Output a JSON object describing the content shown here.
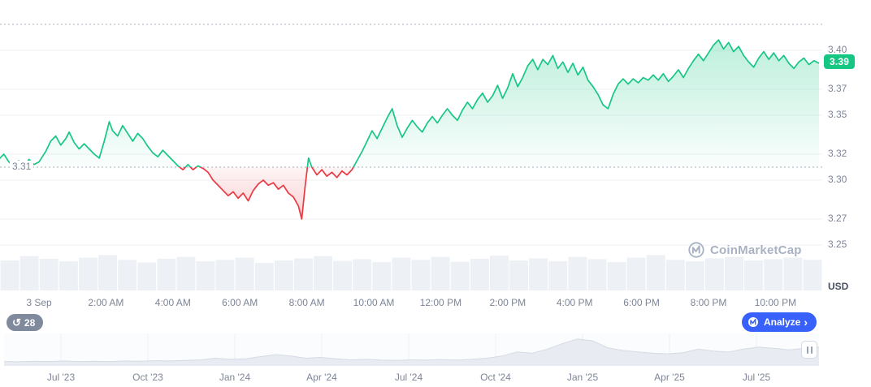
{
  "colors": {
    "green": "#16c784",
    "red": "#ea3943",
    "blue": "#3861fb",
    "gray": "#808a9d"
  },
  "watermark": {
    "text": "CoinMarketCap"
  },
  "controls": {
    "history_badge": {
      "label": "28",
      "icon": "history-clock"
    },
    "analyze_button": {
      "label": "Analyze",
      "icon": "coinmarketcap-logo",
      "chevron": "›"
    }
  },
  "chart_data": {
    "type": "area",
    "unit": "USD",
    "baseline": 3.31,
    "baseline_label": "3.31",
    "current_price": "3.39",
    "ylim": [
      3.25,
      3.42
    ],
    "y_ticks": [
      {
        "value": 3.4,
        "label": "3.40"
      },
      {
        "value": 3.37,
        "label": "3.37"
      },
      {
        "value": 3.35,
        "label": "3.35"
      },
      {
        "value": 3.32,
        "label": "3.32"
      },
      {
        "value": 3.3,
        "label": "3.30"
      },
      {
        "value": 3.27,
        "label": "3.27"
      },
      {
        "value": 3.25,
        "label": "3.25"
      }
    ],
    "x_ticks": [
      {
        "hour": 0,
        "label": "3 Sep"
      },
      {
        "hour": 2,
        "label": "2:00 AM"
      },
      {
        "hour": 4,
        "label": "4:00 AM"
      },
      {
        "hour": 6,
        "label": "6:00 AM"
      },
      {
        "hour": 8,
        "label": "8:00 AM"
      },
      {
        "hour": 10,
        "label": "10:00 AM"
      },
      {
        "hour": 12,
        "label": "12:00 PM"
      },
      {
        "hour": 14,
        "label": "2:00 PM"
      },
      {
        "hour": 16,
        "label": "4:00 PM"
      },
      {
        "hour": 18,
        "label": "6:00 PM"
      },
      {
        "hour": 20,
        "label": "8:00 PM"
      },
      {
        "hour": 22,
        "label": "10:00 PM"
      }
    ],
    "series_name": "price-usd",
    "series": [
      [
        -1.2,
        3.316
      ],
      [
        -1.05,
        3.32
      ],
      [
        -0.9,
        3.314
      ],
      [
        -0.75,
        3.311
      ],
      [
        -0.6,
        3.315
      ],
      [
        -0.45,
        3.31
      ],
      [
        -0.3,
        3.316
      ],
      [
        -0.15,
        3.312
      ],
      [
        0,
        3.314
      ],
      [
        0.2,
        3.322
      ],
      [
        0.35,
        3.33
      ],
      [
        0.5,
        3.334
      ],
      [
        0.65,
        3.327
      ],
      [
        0.8,
        3.332
      ],
      [
        0.9,
        3.337
      ],
      [
        1.05,
        3.329
      ],
      [
        1.2,
        3.324
      ],
      [
        1.35,
        3.328
      ],
      [
        1.5,
        3.324
      ],
      [
        1.65,
        3.32
      ],
      [
        1.8,
        3.317
      ],
      [
        1.95,
        3.33
      ],
      [
        2.1,
        3.345
      ],
      [
        2.2,
        3.338
      ],
      [
        2.35,
        3.334
      ],
      [
        2.5,
        3.342
      ],
      [
        2.65,
        3.336
      ],
      [
        2.8,
        3.33
      ],
      [
        2.95,
        3.336
      ],
      [
        3.1,
        3.332
      ],
      [
        3.25,
        3.326
      ],
      [
        3.4,
        3.321
      ],
      [
        3.55,
        3.318
      ],
      [
        3.7,
        3.323
      ],
      [
        3.85,
        3.319
      ],
      [
        4.0,
        3.315
      ],
      [
        4.15,
        3.311
      ],
      [
        4.3,
        3.308
      ],
      [
        4.45,
        3.312
      ],
      [
        4.6,
        3.308
      ],
      [
        4.75,
        3.311
      ],
      [
        4.9,
        3.309
      ],
      [
        5.05,
        3.306
      ],
      [
        5.2,
        3.3
      ],
      [
        5.35,
        3.296
      ],
      [
        5.5,
        3.292
      ],
      [
        5.65,
        3.288
      ],
      [
        5.8,
        3.291
      ],
      [
        5.95,
        3.286
      ],
      [
        6.1,
        3.29
      ],
      [
        6.25,
        3.284
      ],
      [
        6.4,
        3.292
      ],
      [
        6.55,
        3.297
      ],
      [
        6.7,
        3.3
      ],
      [
        6.85,
        3.296
      ],
      [
        7.0,
        3.298
      ],
      [
        7.15,
        3.293
      ],
      [
        7.3,
        3.296
      ],
      [
        7.45,
        3.29
      ],
      [
        7.6,
        3.287
      ],
      [
        7.75,
        3.28
      ],
      [
        7.85,
        3.27
      ],
      [
        7.95,
        3.295
      ],
      [
        8.05,
        3.317
      ],
      [
        8.15,
        3.31
      ],
      [
        8.3,
        3.304
      ],
      [
        8.45,
        3.308
      ],
      [
        8.6,
        3.303
      ],
      [
        8.75,
        3.306
      ],
      [
        8.9,
        3.302
      ],
      [
        9.05,
        3.307
      ],
      [
        9.2,
        3.304
      ],
      [
        9.35,
        3.308
      ],
      [
        9.5,
        3.315
      ],
      [
        9.65,
        3.322
      ],
      [
        9.8,
        3.33
      ],
      [
        9.95,
        3.338
      ],
      [
        10.1,
        3.332
      ],
      [
        10.25,
        3.34
      ],
      [
        10.4,
        3.348
      ],
      [
        10.55,
        3.355
      ],
      [
        10.7,
        3.342
      ],
      [
        10.85,
        3.333
      ],
      [
        11.0,
        3.34
      ],
      [
        11.15,
        3.346
      ],
      [
        11.3,
        3.341
      ],
      [
        11.45,
        3.337
      ],
      [
        11.6,
        3.344
      ],
      [
        11.75,
        3.349
      ],
      [
        11.9,
        3.344
      ],
      [
        12.05,
        3.35
      ],
      [
        12.2,
        3.355
      ],
      [
        12.35,
        3.35
      ],
      [
        12.5,
        3.346
      ],
      [
        12.65,
        3.354
      ],
      [
        12.8,
        3.36
      ],
      [
        12.95,
        3.355
      ],
      [
        13.1,
        3.362
      ],
      [
        13.25,
        3.367
      ],
      [
        13.4,
        3.36
      ],
      [
        13.55,
        3.365
      ],
      [
        13.7,
        3.373
      ],
      [
        13.85,
        3.363
      ],
      [
        14.0,
        3.371
      ],
      [
        14.15,
        3.382
      ],
      [
        14.3,
        3.372
      ],
      [
        14.45,
        3.379
      ],
      [
        14.6,
        3.388
      ],
      [
        14.75,
        3.393
      ],
      [
        14.9,
        3.385
      ],
      [
        15.05,
        3.393
      ],
      [
        15.2,
        3.389
      ],
      [
        15.35,
        3.396
      ],
      [
        15.5,
        3.386
      ],
      [
        15.65,
        3.391
      ],
      [
        15.8,
        3.383
      ],
      [
        15.95,
        3.39
      ],
      [
        16.1,
        3.381
      ],
      [
        16.25,
        3.387
      ],
      [
        16.4,
        3.377
      ],
      [
        16.55,
        3.372
      ],
      [
        16.7,
        3.366
      ],
      [
        16.85,
        3.358
      ],
      [
        17.0,
        3.355
      ],
      [
        17.15,
        3.366
      ],
      [
        17.3,
        3.374
      ],
      [
        17.45,
        3.378
      ],
      [
        17.6,
        3.374
      ],
      [
        17.75,
        3.378
      ],
      [
        17.9,
        3.375
      ],
      [
        18.05,
        3.379
      ],
      [
        18.2,
        3.377
      ],
      [
        18.35,
        3.381
      ],
      [
        18.5,
        3.377
      ],
      [
        18.65,
        3.382
      ],
      [
        18.8,
        3.376
      ],
      [
        18.95,
        3.38
      ],
      [
        19.1,
        3.385
      ],
      [
        19.25,
        3.379
      ],
      [
        19.4,
        3.386
      ],
      [
        19.55,
        3.392
      ],
      [
        19.7,
        3.397
      ],
      [
        19.85,
        3.392
      ],
      [
        20.0,
        3.398
      ],
      [
        20.15,
        3.404
      ],
      [
        20.3,
        3.408
      ],
      [
        20.45,
        3.401
      ],
      [
        20.6,
        3.406
      ],
      [
        20.75,
        3.399
      ],
      [
        20.9,
        3.403
      ],
      [
        21.05,
        3.396
      ],
      [
        21.2,
        3.391
      ],
      [
        21.35,
        3.387
      ],
      [
        21.5,
        3.394
      ],
      [
        21.65,
        3.399
      ],
      [
        21.8,
        3.393
      ],
      [
        21.95,
        3.398
      ],
      [
        22.1,
        3.392
      ],
      [
        22.25,
        3.396
      ],
      [
        22.4,
        3.39
      ],
      [
        22.55,
        3.386
      ],
      [
        22.7,
        3.391
      ],
      [
        22.85,
        3.394
      ],
      [
        23.0,
        3.389
      ],
      [
        23.15,
        3.392
      ],
      [
        23.3,
        3.39
      ]
    ],
    "volume": [
      0.8,
      0.92,
      0.85,
      0.78,
      0.88,
      0.95,
      0.82,
      0.75,
      0.85,
      0.9,
      0.78,
      0.82,
      0.88,
      0.74,
      0.8,
      0.86,
      0.92,
      0.79,
      0.84,
      0.76,
      0.88,
      0.82,
      0.9,
      0.77,
      0.85,
      0.93,
      0.8,
      0.86,
      0.78,
      0.9,
      0.84,
      0.76,
      0.88,
      0.95,
      0.82,
      0.78,
      0.86,
      0.9,
      0.8,
      0.84,
      0.88,
      0.82
    ],
    "navigator": {
      "labels": [
        "Jul '23",
        "Oct '23",
        "Jan '24",
        "Apr '24",
        "Jul '24",
        "Oct '24",
        "Jan '25",
        "Apr '25",
        "Jul '25"
      ],
      "values": [
        0.1,
        0.09,
        0.11,
        0.1,
        0.12,
        0.1,
        0.11,
        0.1,
        0.12,
        0.11,
        0.13,
        0.12,
        0.14,
        0.16,
        0.22,
        0.18,
        0.2,
        0.28,
        0.35,
        0.3,
        0.22,
        0.25,
        0.2,
        0.16,
        0.18,
        0.15,
        0.14,
        0.16,
        0.15,
        0.17,
        0.15,
        0.18,
        0.22,
        0.3,
        0.45,
        0.4,
        0.55,
        0.75,
        0.92,
        0.85,
        0.6,
        0.5,
        0.45,
        0.4,
        0.38,
        0.42,
        0.55,
        0.48,
        0.44,
        0.55,
        0.62,
        0.58,
        0.52,
        0.58,
        0.62
      ]
    }
  }
}
